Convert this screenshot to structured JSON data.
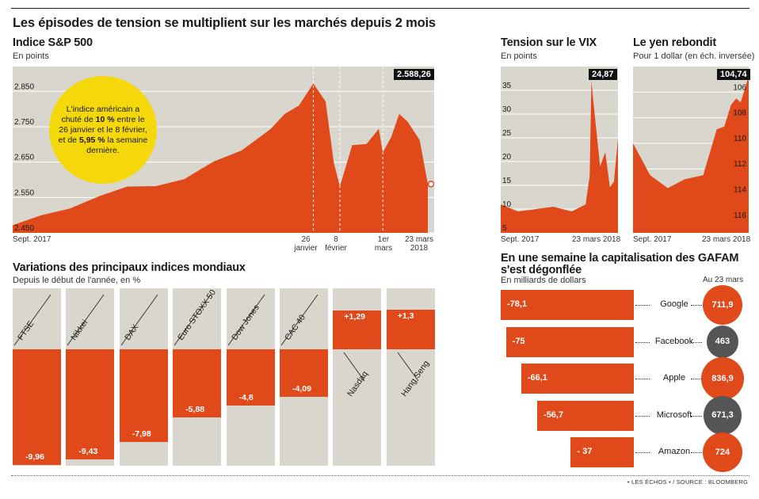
{
  "title": "Les épisodes de tension se multiplient sur les marchés depuis 2 mois",
  "colors": {
    "accent": "#e0491a",
    "panel_bg": "#d9d6ce",
    "yellow": "#f5d80c",
    "dark": "#555555"
  },
  "sp500": {
    "title": "Indice S&P 500",
    "unit": "En points",
    "last_value_label": "2.588,26",
    "note_parts": [
      "L'indice américain a chuté de ",
      "10 %",
      " entre le 26 janvier et le 8 février, et de ",
      "5,95 %",
      " la semaine dernière."
    ],
    "x_start": "Sept. 2017",
    "x_labels": [
      {
        "l1": "26",
        "l2": "janvier"
      },
      {
        "l1": "8",
        "l2": "février"
      },
      {
        "l1": "1er",
        "l2": "mars"
      },
      {
        "l1": "23 mars",
        "l2": "2018"
      }
    ]
  },
  "vix": {
    "title": "Tension sur le VIX",
    "unit": "En points",
    "last_value_label": "24,87",
    "x_start": "Sept. 2017",
    "x_end": "23 mars 2018"
  },
  "yen": {
    "title": "Le yen rebondit",
    "unit": "Pour 1 dollar (en éch. inversée)",
    "last_value_label": "104,74",
    "x_start": "Sept. 2017",
    "x_end": "23 mars 2018"
  },
  "indices": {
    "title": "Variations des principaux indices mondiaux",
    "subtitle": "Depuis le début de l'année, en %",
    "items": [
      {
        "name": "FTSE",
        "label": "-9,96"
      },
      {
        "name": "Nikkei",
        "label": "-9,43"
      },
      {
        "name": "DAX",
        "label": "-7,98"
      },
      {
        "name": "Euro STOXX 50",
        "label": "-5,88"
      },
      {
        "name": "Dow Jones",
        "label": "-4,8"
      },
      {
        "name": "CAC 40",
        "label": "-4,09"
      },
      {
        "name": "Nasdaq",
        "label": "+1,29"
      },
      {
        "name": "Hang Seng",
        "label": "+1,3"
      }
    ]
  },
  "gafam": {
    "title_l1": "En une semaine la capitalisation des GAFAM",
    "title_l2": "s'est dégonflée",
    "unit": "En milliards de dollars",
    "cap_header": "Au 23 mars",
    "items": [
      {
        "name": "Google",
        "change": -78.1,
        "change_label": "-78,1",
        "cap": 711.9,
        "cap_label": "711,9",
        "color": "#e0491a"
      },
      {
        "name": "Facebook",
        "change": -75,
        "change_label": "-75",
        "cap": 463,
        "cap_label": "463",
        "color": "#555555"
      },
      {
        "name": "Apple",
        "change": -66.1,
        "change_label": "-66,1",
        "cap": 836.9,
        "cap_label": "836,9",
        "color": "#e0491a"
      },
      {
        "name": "Microsoft",
        "change": -56.7,
        "change_label": "-56,7",
        "cap": 671.3,
        "cap_label": "671,3",
        "color": "#555555"
      },
      {
        "name": "Amazon",
        "change": -37,
        "change_label": "- 37",
        "cap": 724,
        "cap_label": "724",
        "color": "#e0491a"
      }
    ]
  },
  "source": "• LES ÉCHOS • / SOURCE : BLOOMBERG",
  "chart_data": [
    {
      "type": "area",
      "title": "Indice S&P 500",
      "ylabel": "En points",
      "ylim": [
        2450,
        2920
      ],
      "yticks": [
        2450,
        2550,
        2650,
        2750,
        2850
      ],
      "ytick_labels": [
        "2.450",
        "2.550",
        "2.650",
        "2.750",
        "2.850"
      ],
      "grid": true,
      "x": [
        "2017-09-01",
        "2017-09-15",
        "2017-09-29",
        "2017-10-13",
        "2017-10-27",
        "2017-11-10",
        "2017-11-24",
        "2017-12-08",
        "2017-12-22",
        "2018-01-05",
        "2018-01-12",
        "2018-01-19",
        "2018-01-26",
        "2018-02-01",
        "2018-02-05",
        "2018-02-08",
        "2018-02-14",
        "2018-02-21",
        "2018-02-27",
        "2018-03-01",
        "2018-03-05",
        "2018-03-09",
        "2018-03-13",
        "2018-03-19",
        "2018-03-23"
      ],
      "values": [
        2472,
        2500,
        2519,
        2553,
        2581,
        2582,
        2602,
        2651,
        2683,
        2743,
        2786,
        2810,
        2872,
        2821,
        2649,
        2581,
        2698,
        2701,
        2744,
        2677,
        2720,
        2786,
        2765,
        2712,
        2588
      ]
    },
    {
      "type": "area",
      "title": "Tension sur le VIX",
      "ylabel": "En points",
      "ylim": [
        5,
        40
      ],
      "yticks": [
        5,
        10,
        15,
        20,
        25,
        30,
        35
      ],
      "grid": true,
      "x": [
        "2017-09-01",
        "2017-10-01",
        "2017-11-01",
        "2017-12-01",
        "2018-01-02",
        "2018-01-26",
        "2018-02-02",
        "2018-02-05",
        "2018-02-08",
        "2018-02-20",
        "2018-03-01",
        "2018-03-09",
        "2018-03-16",
        "2018-03-23"
      ],
      "values": [
        11,
        9.5,
        10,
        10.5,
        9.5,
        11,
        17,
        37,
        33,
        19,
        22,
        14.6,
        15.8,
        24.87
      ]
    },
    {
      "type": "area",
      "title": "Le yen rebondit",
      "ylabel": "Pour 1 dollar (en éch. inversée)",
      "ylim": [
        117,
        104
      ],
      "yticks": [
        106,
        108,
        110,
        112,
        114,
        116
      ],
      "inverted_y": true,
      "grid": true,
      "x": [
        "2017-09-01",
        "2017-10-01",
        "2017-11-01",
        "2017-12-01",
        "2018-01-02",
        "2018-01-26",
        "2018-02-08",
        "2018-02-20",
        "2018-03-01",
        "2018-03-09",
        "2018-03-23"
      ],
      "values": [
        110,
        112.5,
        113.5,
        112.8,
        112.5,
        108.9,
        108.7,
        107,
        106.5,
        106.8,
        104.74
      ]
    },
    {
      "type": "bar",
      "title": "Variations des principaux indices mondiaux",
      "ylabel": "Depuis le début de l'année, en %",
      "categories": [
        "FTSE",
        "Nikkei",
        "DAX",
        "Euro STOXX 50",
        "Dow Jones",
        "CAC 40",
        "Nasdaq",
        "Hang Seng"
      ],
      "values": [
        -9.96,
        -9.43,
        -7.98,
        -5.88,
        -4.8,
        -4.09,
        1.29,
        1.3
      ]
    },
    {
      "type": "bar",
      "title": "En une semaine la capitalisation des GAFAM s'est dégonflée",
      "ylabel": "En milliards de dollars",
      "categories": [
        "Google",
        "Facebook",
        "Apple",
        "Microsoft",
        "Amazon"
      ],
      "values": [
        -78.1,
        -75,
        -66.1,
        -56.7,
        -37
      ],
      "series": [
        {
          "name": "Au 23 mars",
          "values": [
            711.9,
            463,
            836.9,
            671.3,
            724
          ]
        }
      ]
    }
  ]
}
